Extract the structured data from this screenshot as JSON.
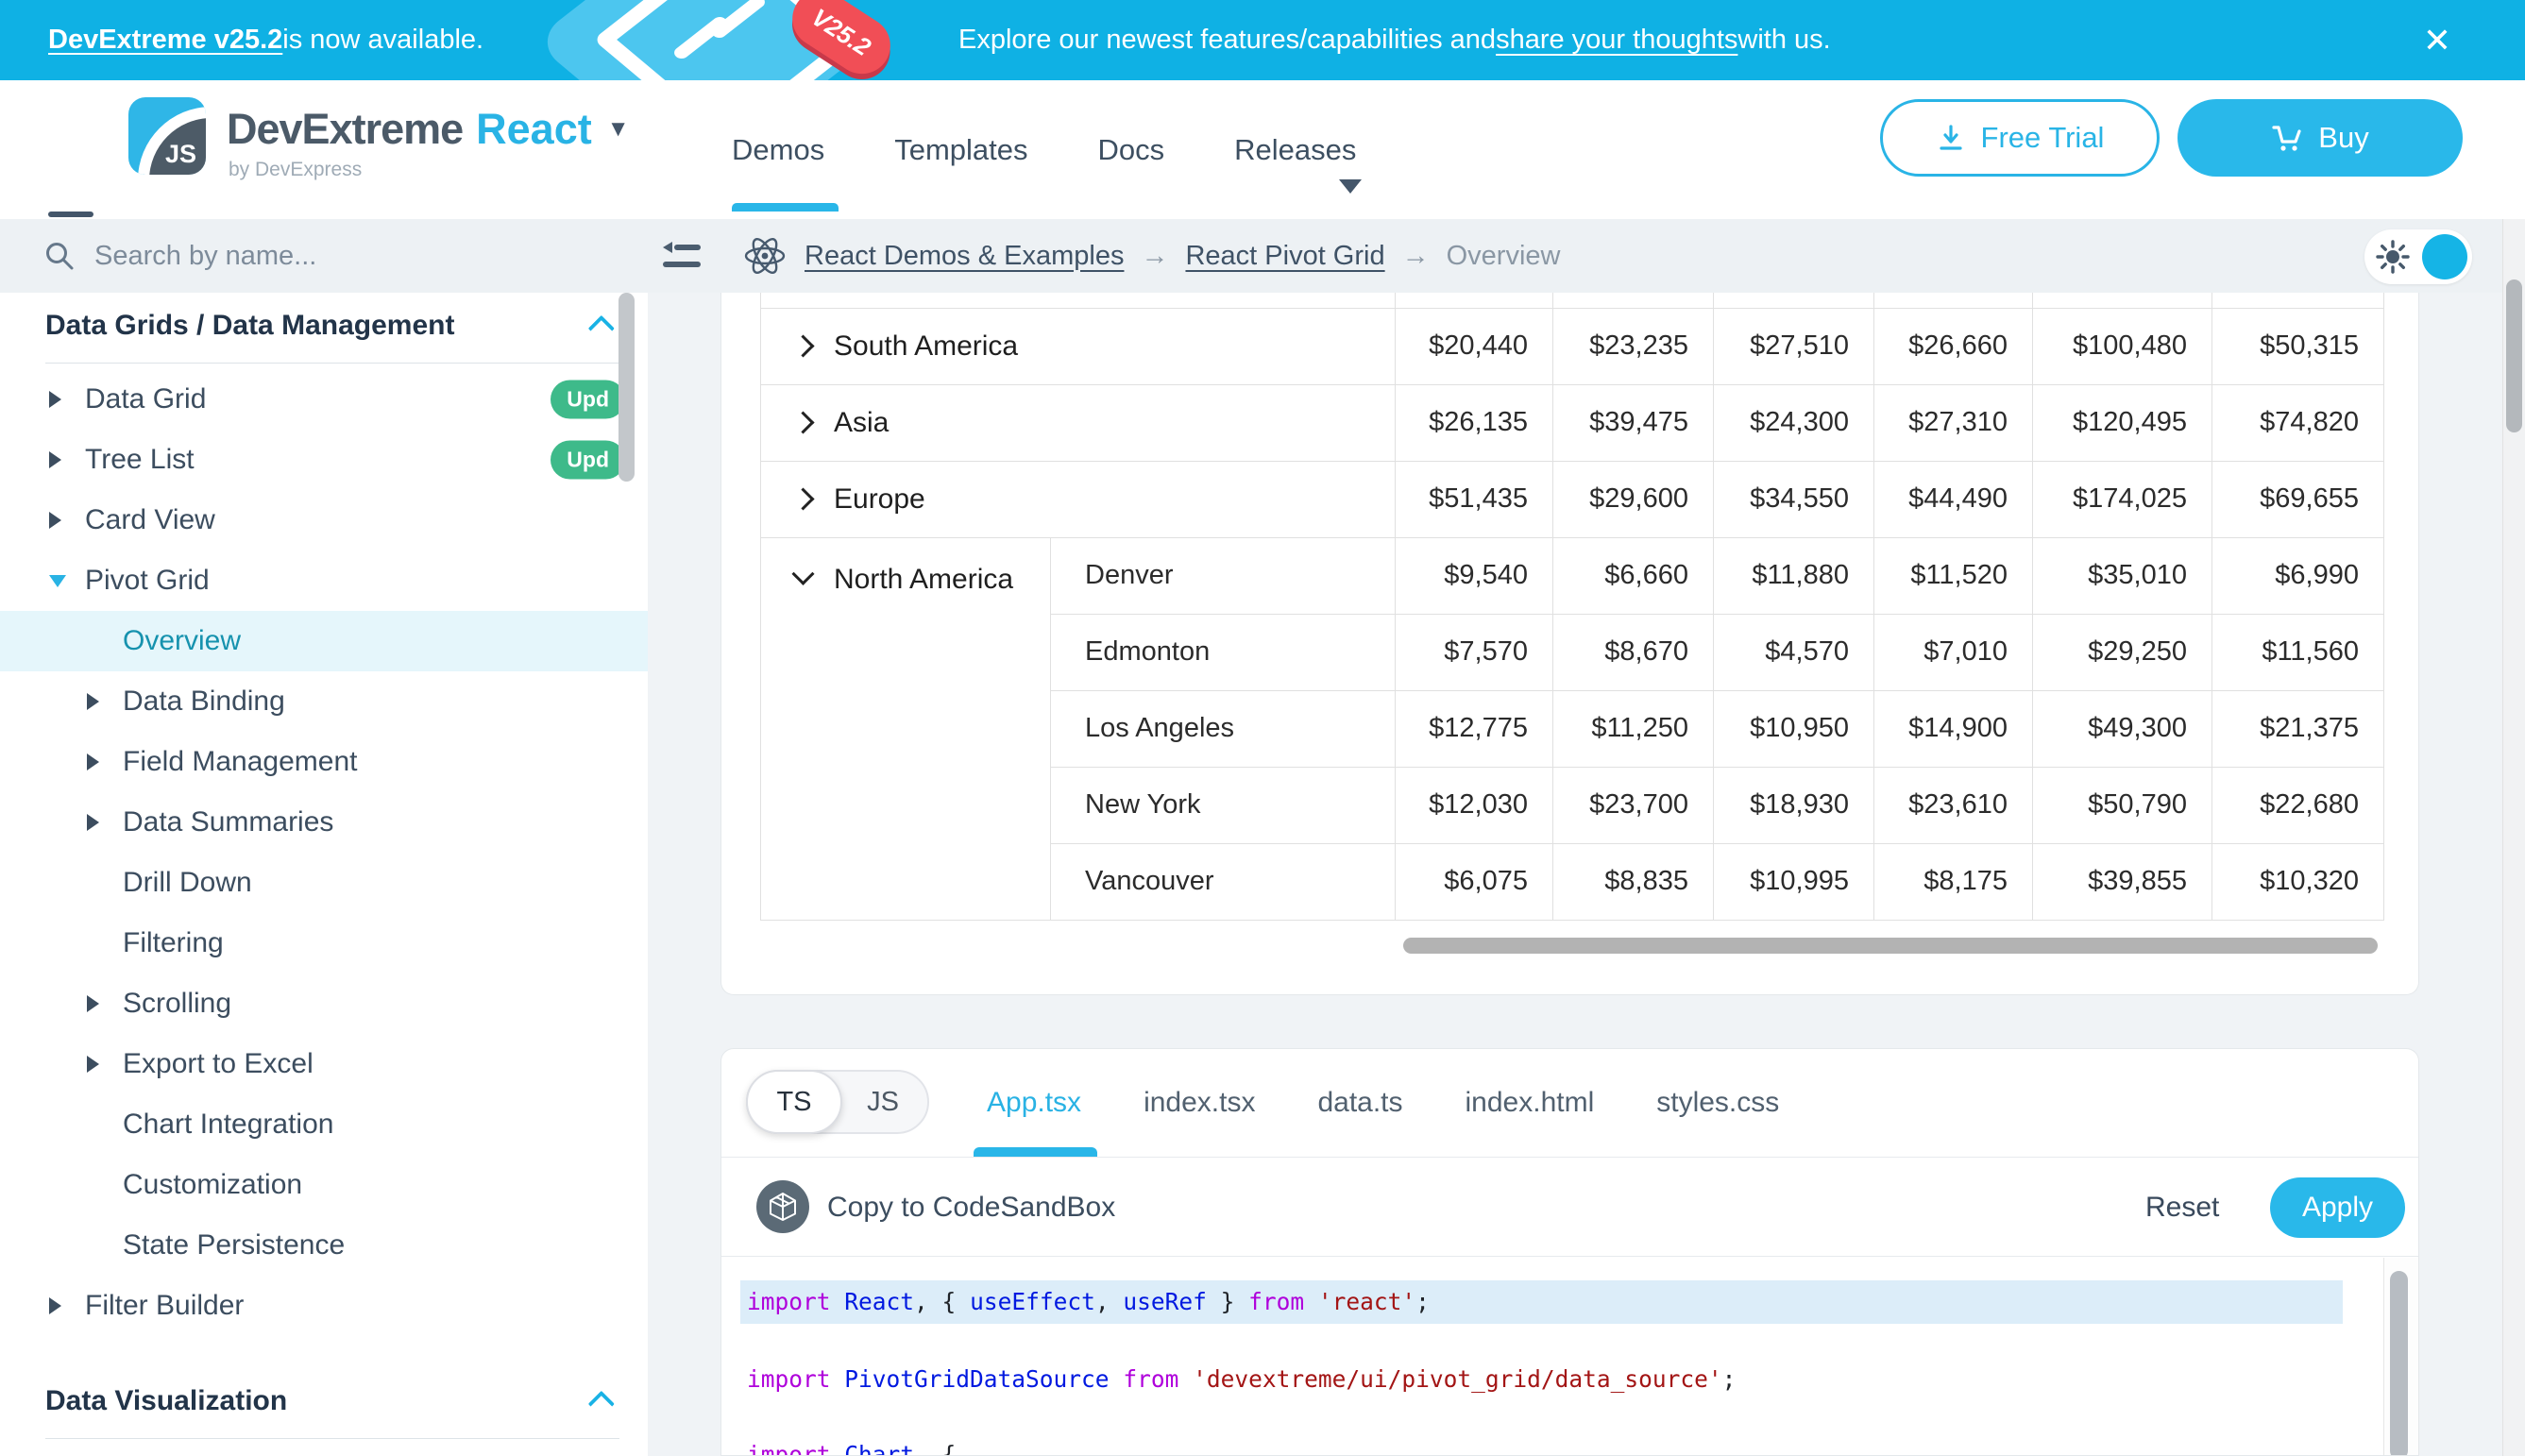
{
  "accent_color": "#29b6e8",
  "banner": {
    "left_bold": "DevExtreme v25.2",
    "left_rest": " is now available.",
    "badge": "V25.2",
    "center_pre": "Explore our newest features/capabilities and ",
    "center_link": "share your thoughts",
    "center_post": " with us.",
    "close_icon": "✕"
  },
  "header": {
    "brand": "DevExtreme",
    "framework": "React",
    "byline": "by DevExpress",
    "logo_text": "JS",
    "nav": [
      {
        "label": "Demos",
        "active": true
      },
      {
        "label": "Templates",
        "active": false
      },
      {
        "label": "Docs",
        "active": false
      },
      {
        "label": "Releases",
        "active": false,
        "has_caret": true
      }
    ],
    "free_trial_label": "Free Trial",
    "buy_label": "Buy"
  },
  "breadcrumb": {
    "links": [
      "React Demos & Examples",
      "React Pivot Grid"
    ],
    "separator": "→",
    "current": "Overview"
  },
  "sidebar": {
    "search_placeholder": "Search by name...",
    "items": [
      {
        "type": "section",
        "label": "Data Grids / Data Management"
      },
      {
        "type": "divider"
      },
      {
        "type": "item",
        "label": "Data Grid",
        "arrow": "right",
        "indent": 1,
        "badge": "Upd"
      },
      {
        "type": "item",
        "label": "Tree List",
        "arrow": "right",
        "indent": 1,
        "badge": "Upd"
      },
      {
        "type": "item",
        "label": "Card View",
        "arrow": "right",
        "indent": 1
      },
      {
        "type": "item",
        "label": "Pivot Grid",
        "arrow": "down",
        "indent": 1
      },
      {
        "type": "item",
        "label": "Overview",
        "indent": 2,
        "active": true
      },
      {
        "type": "item",
        "label": "Data Binding",
        "arrow": "right",
        "indent": 2
      },
      {
        "type": "item",
        "label": "Field Management",
        "arrow": "right",
        "indent": 2
      },
      {
        "type": "item",
        "label": "Data Summaries",
        "arrow": "right",
        "indent": 2
      },
      {
        "type": "item",
        "label": "Drill Down",
        "indent": 2
      },
      {
        "type": "item",
        "label": "Filtering",
        "indent": 2
      },
      {
        "type": "item",
        "label": "Scrolling",
        "arrow": "right",
        "indent": 2
      },
      {
        "type": "item",
        "label": "Export to Excel",
        "arrow": "right",
        "indent": 2
      },
      {
        "type": "item",
        "label": "Chart Integration",
        "indent": 2
      },
      {
        "type": "item",
        "label": "Customization",
        "indent": 2
      },
      {
        "type": "item",
        "label": "State Persistence",
        "indent": 2
      },
      {
        "type": "item",
        "label": "Filter Builder",
        "arrow": "right",
        "indent": 1
      },
      {
        "type": "gap"
      },
      {
        "type": "section",
        "label": "Data Visualization"
      },
      {
        "type": "divider"
      }
    ]
  },
  "pivot_grid": {
    "rows": [
      {
        "region": "South America",
        "expanded": false,
        "values": [
          "$20,440",
          "$23,235",
          "$27,510",
          "$26,660",
          "$100,480",
          "$50,315"
        ]
      },
      {
        "region": "Asia",
        "expanded": false,
        "values": [
          "$26,135",
          "$39,475",
          "$24,300",
          "$27,310",
          "$120,495",
          "$74,820"
        ]
      },
      {
        "region": "Europe",
        "expanded": false,
        "values": [
          "$51,435",
          "$29,600",
          "$34,550",
          "$44,490",
          "$174,025",
          "$69,655"
        ]
      },
      {
        "region": "North America",
        "expanded": true,
        "city": "Denver",
        "rowspan": 5,
        "values": [
          "$9,540",
          "$6,660",
          "$11,880",
          "$11,520",
          "$35,010",
          "$6,990"
        ]
      },
      {
        "city": "Edmonton",
        "values": [
          "$7,570",
          "$8,670",
          "$4,570",
          "$7,010",
          "$29,250",
          "$11,560"
        ]
      },
      {
        "city": "Los Angeles",
        "values": [
          "$12,775",
          "$11,250",
          "$10,950",
          "$14,900",
          "$49,300",
          "$21,375"
        ]
      },
      {
        "city": "New York",
        "values": [
          "$12,030",
          "$23,700",
          "$18,930",
          "$23,610",
          "$50,790",
          "$22,680"
        ]
      },
      {
        "city": "Vancouver",
        "values": [
          "$6,075",
          "$8,835",
          "$10,995",
          "$8,175",
          "$39,855",
          "$10,320"
        ]
      }
    ]
  },
  "code_panel": {
    "lang_toggle": {
      "selected": "TS",
      "other": "JS"
    },
    "tabs": [
      {
        "label": "App.tsx",
        "active": true
      },
      {
        "label": "index.tsx",
        "active": false
      },
      {
        "label": "data.ts",
        "active": false
      },
      {
        "label": "index.html",
        "active": false
      },
      {
        "label": "styles.css",
        "active": false
      }
    ],
    "copy_label": "Copy to CodeSandBox",
    "reset_label": "Reset",
    "apply_label": "Apply",
    "code_lines": [
      {
        "highlight": true,
        "tokens": [
          [
            "kw",
            "import"
          ],
          [
            "pl",
            " "
          ],
          [
            "id",
            "React"
          ],
          [
            "pl",
            ", { "
          ],
          [
            "id",
            "useEffect"
          ],
          [
            "pl",
            ", "
          ],
          [
            "id",
            "useRef"
          ],
          [
            "pl",
            " } "
          ],
          [
            "kw",
            "from"
          ],
          [
            "pl",
            " "
          ],
          [
            "str",
            "'react'"
          ],
          [
            "pl",
            ";"
          ]
        ]
      },
      {
        "highlight": false,
        "tokens": [
          [
            "kw",
            "import"
          ],
          [
            "pl",
            " "
          ],
          [
            "id",
            "PivotGridDataSource"
          ],
          [
            "pl",
            " "
          ],
          [
            "kw",
            "from"
          ],
          [
            "pl",
            " "
          ],
          [
            "str",
            "'devextreme/ui/pivot_grid/data_source'"
          ],
          [
            "pl",
            ";"
          ]
        ]
      },
      {
        "highlight": false,
        "tokens": [
          [
            "kw",
            "import"
          ],
          [
            "pl",
            " "
          ],
          [
            "id",
            "Chart"
          ],
          [
            "pl",
            ", {"
          ]
        ]
      }
    ]
  }
}
